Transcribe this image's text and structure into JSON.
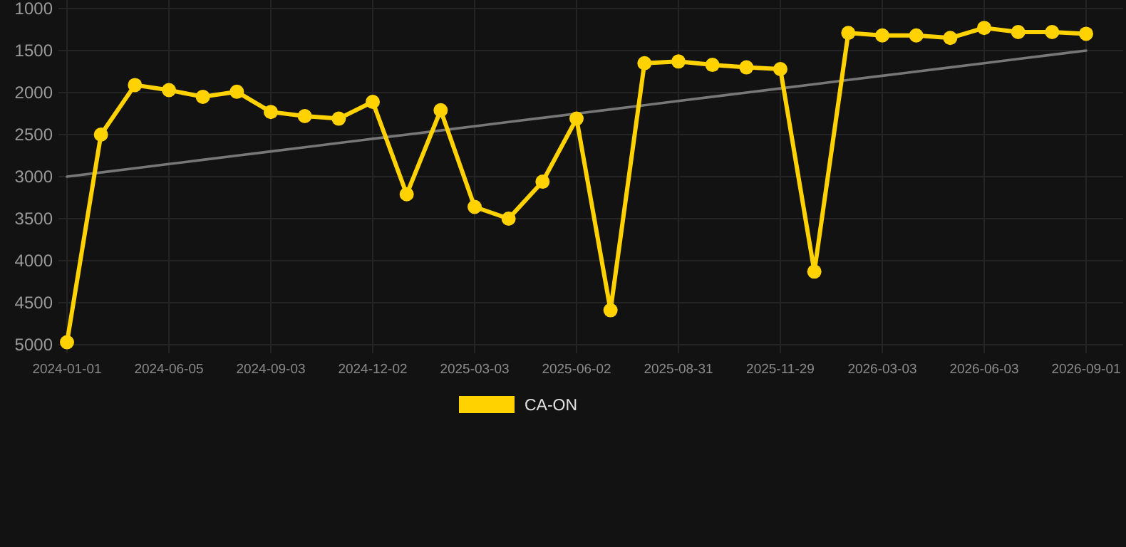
{
  "chart_data": {
    "type": "line",
    "categories": [
      "2024-01-01",
      null,
      null,
      "2024-06-05",
      null,
      null,
      "2024-09-03",
      null,
      null,
      "2024-12-02",
      null,
      null,
      "2025-03-03",
      null,
      null,
      "2025-06-02",
      null,
      null,
      "2025-08-31",
      null,
      null,
      "2025-11-29",
      null,
      null,
      "2026-03-03",
      null,
      null,
      "2026-06-03",
      null,
      null,
      "2026-09-01"
    ],
    "series": [
      {
        "name": "CA-ON",
        "color": "#ffd200",
        "values": [
          4970,
          2500,
          1910,
          1970,
          2050,
          1990,
          2230,
          2280,
          2310,
          2110,
          3210,
          2210,
          3360,
          3500,
          3060,
          2310,
          4590,
          1650,
          1630,
          1670,
          1700,
          1720,
          4130,
          1290,
          1320,
          1320,
          1350,
          1230,
          1280,
          1280,
          1300
        ]
      },
      {
        "type": "line",
        "color": "#777777",
        "marker": "none",
        "values": [
          3000,
          2950,
          2900,
          2850,
          2800,
          2750,
          2700,
          2650,
          2600,
          2550,
          2500,
          2450,
          2400,
          2350,
          2300,
          2250,
          2200,
          2150,
          2100,
          2050,
          2000,
          1950,
          1900,
          1850,
          1800,
          1750,
          1700,
          1650,
          1600,
          1550,
          1500
        ]
      }
    ],
    "ylim": [
      5000,
      1000
    ],
    "yticks": [
      1000,
      1500,
      2000,
      2500,
      3000,
      3500,
      4000,
      4500,
      5000
    ],
    "grid": true,
    "legend": "bottom",
    "marker": "circle",
    "line_style": "solid"
  }
}
